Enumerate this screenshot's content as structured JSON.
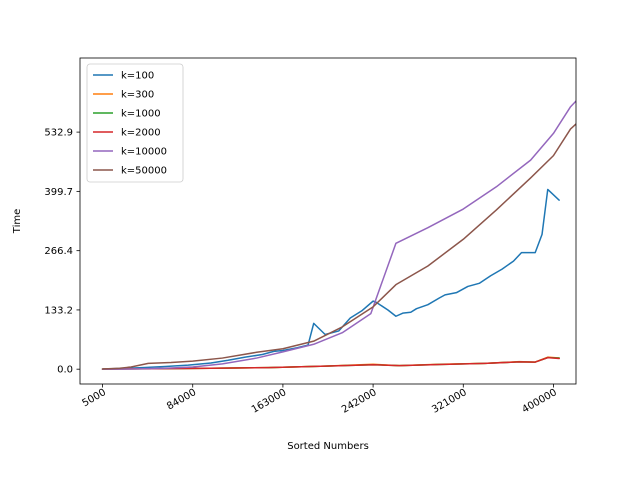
{
  "chart_data": {
    "type": "line",
    "title": "",
    "xlabel": "Sorted Numbers",
    "ylabel": "Time",
    "xlim": [
      -14750,
      419750
    ],
    "ylim": [
      -33.3,
      699.5
    ],
    "x_ticks": [
      5000,
      84000,
      163000,
      242000,
      321000,
      400000
    ],
    "x_tick_labels": [
      "5000",
      "84000",
      "163000",
      "242000",
      "321000",
      "400000"
    ],
    "y_ticks": [
      0.0,
      133.2,
      266.4,
      399.7,
      532.9
    ],
    "y_tick_labels": [
      "0.0",
      "133.2",
      "266.4",
      "399.7",
      "532.9"
    ],
    "legend_position": "upper-left",
    "grid": false,
    "series": [
      {
        "name": "k=100",
        "color": "#1f77b4",
        "points": [
          [
            5000,
            0.5
          ],
          [
            20000,
            1.5
          ],
          [
            40000,
            3.5
          ],
          [
            60000,
            6
          ],
          [
            80000,
            9
          ],
          [
            100000,
            14
          ],
          [
            115000,
            20
          ],
          [
            130000,
            27
          ],
          [
            145000,
            33
          ],
          [
            155000,
            40
          ],
          [
            163000,
            42
          ],
          [
            175000,
            48
          ],
          [
            185000,
            54
          ],
          [
            190000,
            103
          ],
          [
            200000,
            78
          ],
          [
            212000,
            86
          ],
          [
            222000,
            115
          ],
          [
            232000,
            131
          ],
          [
            242000,
            153
          ],
          [
            245000,
            150
          ],
          [
            255000,
            133
          ],
          [
            262000,
            119
          ],
          [
            268000,
            126
          ],
          [
            275000,
            128
          ],
          [
            280000,
            136
          ],
          [
            290000,
            145
          ],
          [
            300000,
            160
          ],
          [
            305000,
            167
          ],
          [
            315000,
            172
          ],
          [
            325000,
            186
          ],
          [
            335000,
            193
          ],
          [
            345000,
            210
          ],
          [
            355000,
            225
          ],
          [
            365000,
            243
          ],
          [
            372000,
            262
          ],
          [
            384000,
            262
          ],
          [
            390000,
            303
          ],
          [
            395000,
            404
          ],
          [
            405000,
            380
          ]
        ]
      },
      {
        "name": "k=300",
        "color": "#ff7f0e",
        "points": [
          [
            5000,
            0.2
          ],
          [
            50000,
            1
          ],
          [
            100000,
            2
          ],
          [
            150000,
            3.5
          ],
          [
            200000,
            7
          ],
          [
            242000,
            11
          ],
          [
            265000,
            8
          ],
          [
            300000,
            11
          ],
          [
            340000,
            13
          ],
          [
            370000,
            17
          ],
          [
            384000,
            16
          ],
          [
            395000,
            27
          ],
          [
            405000,
            25
          ]
        ]
      },
      {
        "name": "k=1000",
        "color": "#2ca02c",
        "points": [
          [
            5000,
            0.2
          ],
          [
            50000,
            1
          ],
          [
            100000,
            2
          ],
          [
            150000,
            3.5
          ],
          [
            200000,
            7
          ],
          [
            242000,
            10
          ],
          [
            265000,
            8
          ],
          [
            300000,
            10.5
          ],
          [
            340000,
            13
          ],
          [
            370000,
            16.5
          ],
          [
            384000,
            16
          ],
          [
            395000,
            26
          ],
          [
            405000,
            25
          ]
        ]
      },
      {
        "name": "k=2000",
        "color": "#d62728",
        "points": [
          [
            5000,
            0.2
          ],
          [
            50000,
            1
          ],
          [
            100000,
            2
          ],
          [
            150000,
            3.5
          ],
          [
            200000,
            7
          ],
          [
            242000,
            10
          ],
          [
            265000,
            8
          ],
          [
            300000,
            10.5
          ],
          [
            340000,
            13
          ],
          [
            370000,
            16.5
          ],
          [
            384000,
            16
          ],
          [
            395000,
            26
          ],
          [
            405000,
            24
          ]
        ]
      },
      {
        "name": "k=10000",
        "color": "#9467bd",
        "points": [
          [
            5000,
            0
          ],
          [
            30000,
            0.5
          ],
          [
            60000,
            2
          ],
          [
            84000,
            5
          ],
          [
            110000,
            12
          ],
          [
            140000,
            25
          ],
          [
            163000,
            39
          ],
          [
            190000,
            56
          ],
          [
            215000,
            82
          ],
          [
            240000,
            125
          ],
          [
            262000,
            283
          ],
          [
            290000,
            318
          ],
          [
            321000,
            360
          ],
          [
            350000,
            410
          ],
          [
            380000,
            470
          ],
          [
            400000,
            530
          ],
          [
            415000,
            590
          ],
          [
            430000,
            630
          ]
        ]
      },
      {
        "name": "k=50000",
        "color": "#8c564b",
        "points": [
          [
            5000,
            0.3
          ],
          [
            20000,
            2
          ],
          [
            30000,
            5
          ],
          [
            45000,
            13
          ],
          [
            65000,
            15
          ],
          [
            84000,
            18
          ],
          [
            110000,
            25
          ],
          [
            140000,
            38
          ],
          [
            163000,
            46
          ],
          [
            190000,
            63
          ],
          [
            215000,
            95
          ],
          [
            242000,
            140
          ],
          [
            262000,
            190
          ],
          [
            290000,
            232
          ],
          [
            321000,
            292
          ],
          [
            350000,
            358
          ],
          [
            380000,
            430
          ],
          [
            400000,
            480
          ],
          [
            415000,
            540
          ],
          [
            430000,
            575
          ]
        ]
      }
    ]
  }
}
